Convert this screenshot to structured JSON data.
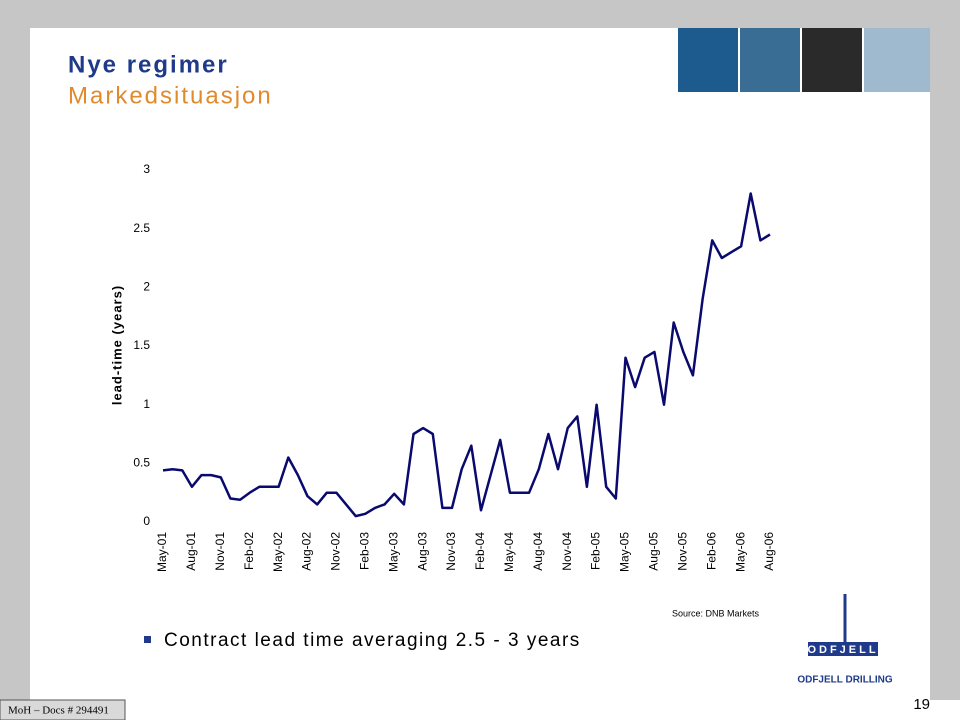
{
  "slide": {
    "title": "Nye regimer",
    "subtitle": "Markedsituasjon",
    "bullet": "Contract lead time averaging 2.5 - 3 years",
    "source": "Source: DNB Markets",
    "footer": "MoH – Docs # 294491",
    "page_number": "19",
    "logo_name": "ODFJELL",
    "logo_tagline": "ODFJELL DRILLING"
  },
  "chart_data": {
    "type": "line",
    "ylabel": "lead-time (years)",
    "categories": [
      "May-01",
      null,
      null,
      "Aug-01",
      null,
      null,
      "Nov-01",
      null,
      null,
      "Feb-02",
      null,
      null,
      "May-02",
      null,
      null,
      "Aug-02",
      null,
      null,
      "Nov-02",
      null,
      null,
      "Feb-03",
      null,
      null,
      "May-03",
      null,
      null,
      "Aug-03",
      null,
      null,
      "Nov-03",
      null,
      null,
      "Feb-04",
      null,
      null,
      "May-04",
      null,
      null,
      "Aug-04",
      null,
      null,
      "Nov-04",
      null,
      null,
      "Feb-05",
      null,
      null,
      "May-05",
      null,
      null,
      "Aug-05",
      null,
      null,
      "Nov-05",
      null,
      null,
      "Feb-06",
      null,
      null,
      "May-06",
      null,
      null,
      "Aug-06"
    ],
    "series": [
      {
        "name": "lead-time",
        "color": "#0a0a6e",
        "values": [
          0.44,
          0.45,
          0.44,
          0.3,
          0.4,
          0.4,
          0.38,
          0.2,
          0.19,
          0.25,
          0.3,
          0.3,
          0.3,
          0.55,
          0.4,
          0.22,
          0.15,
          0.25,
          0.25,
          0.15,
          0.05,
          0.07,
          0.12,
          0.15,
          0.24,
          0.15,
          0.75,
          0.8,
          0.75,
          0.12,
          0.12,
          0.45,
          0.65,
          0.1,
          0.4,
          0.7,
          0.25,
          0.25,
          0.25,
          0.45,
          0.75,
          0.45,
          0.8,
          0.9,
          0.3,
          1.0,
          0.3,
          0.2,
          1.4,
          1.15,
          1.4,
          1.45,
          1.0,
          1.7,
          1.45,
          1.25,
          1.9,
          2.4,
          2.25,
          2.3,
          2.35,
          2.8,
          2.4,
          2.45
        ]
      }
    ],
    "ylim": [
      0,
      3
    ],
    "yticks": [
      0,
      0.5,
      1,
      1.5,
      2,
      2.5,
      3
    ],
    "grid": false
  }
}
